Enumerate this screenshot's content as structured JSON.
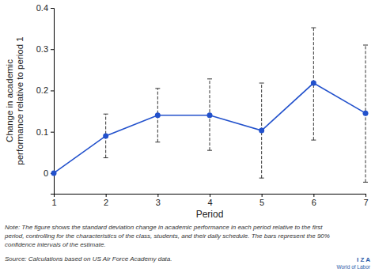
{
  "chart_data": {
    "type": "line",
    "x": [
      1,
      2,
      3,
      4,
      5,
      6,
      7
    ],
    "values": [
      0,
      0.09,
      0.14,
      0.14,
      0.103,
      0.218,
      0.145
    ],
    "ci_low": [
      null,
      0.037,
      0.075,
      0.055,
      -0.012,
      0.08,
      -0.022
    ],
    "ci_high": [
      null,
      0.143,
      0.205,
      0.228,
      0.218,
      0.352,
      0.31
    ],
    "color": "#2251cc",
    "marker": "circle",
    "xlim": [
      1,
      7
    ],
    "xticks": [
      1,
      2,
      3,
      4,
      5,
      6,
      7
    ],
    "ylim": [
      -0.05,
      0.4
    ],
    "yticks": [
      0,
      0.1,
      0.2,
      0.3,
      0.4
    ],
    "grid": false,
    "xlabel": "Period",
    "ylabel": [
      "Change in academic",
      "performance relative to period 1"
    ],
    "note": [
      "Note: The figure shows the standard deviation change in academic performance in each period relative to the first",
      "period, controlling for the characteristics of the class, students, and their daily schedule. The bars represent the 90%",
      "confidence intervals of the estimate."
    ],
    "source": "Source: Calculations based on US Air Force Academy data.",
    "logo": [
      "I Z A",
      "World of Labor"
    ]
  }
}
